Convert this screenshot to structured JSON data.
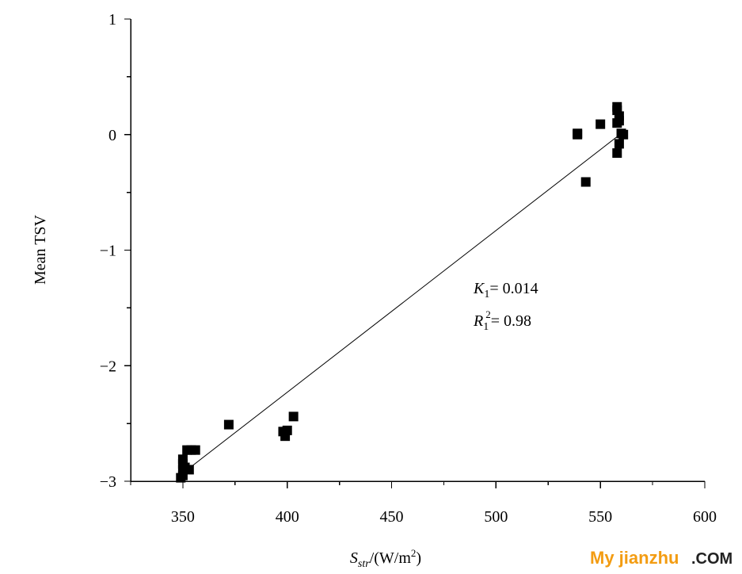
{
  "chart_data": {
    "type": "scatter",
    "ylabel": "Mean TSV",
    "xlabel": {
      "symbol": "S",
      "subscript": "str",
      "unit": "/(W/m",
      "superscript": "2",
      "close": ")"
    },
    "xlim": [
      325,
      600
    ],
    "ylim": [
      -3,
      1
    ],
    "x_ticks": [
      350,
      400,
      450,
      500,
      550,
      600
    ],
    "x_tick_labels": [
      "350",
      "400",
      "450",
      "500",
      "550",
      "600"
    ],
    "x_minor_ticks": [
      325,
      375,
      425,
      475,
      525,
      575
    ],
    "y_ticks": [
      1,
      0,
      -1,
      -2,
      -3
    ],
    "y_tick_labels": [
      "1",
      "0",
      "−1",
      "−2",
      "−3"
    ],
    "y_minor_ticks": [
      0.5,
      -0.5,
      -1.5,
      -2.5
    ],
    "grid": false,
    "marker_color": "#000000",
    "series": [
      {
        "x": [
          349,
          350,
          350,
          350,
          350,
          351,
          352,
          353,
          354,
          356,
          372,
          398,
          399,
          400,
          403,
          539,
          539,
          543,
          550,
          558,
          558,
          559,
          558,
          560,
          561,
          559,
          558,
          559
        ],
        "y": [
          -2.97,
          -2.95,
          -2.9,
          -2.85,
          -2.81,
          -2.88,
          -2.73,
          -2.9,
          -2.73,
          -2.73,
          -2.51,
          -2.57,
          -2.61,
          -2.56,
          -2.44,
          0.0,
          0.01,
          -0.41,
          0.09,
          0.24,
          0.21,
          0.16,
          0.1,
          0.01,
          0.0,
          -0.08,
          -0.16,
          0.12
        ]
      }
    ],
    "fit_line": {
      "x": [
        350,
        560
      ],
      "y": [
        -2.93,
        0.01
      ]
    },
    "annotations": {
      "slope": {
        "symbol": "K",
        "subscript": "1",
        "text": "= 0.014"
      },
      "r_squared": {
        "symbol": "R",
        "subscript": "1",
        "superscript": "2",
        "text": "= 0.98"
      }
    }
  },
  "watermark": {
    "brand": "My jianzhu",
    "suffix": ".COM",
    "brand_color": "#f39c12",
    "suffix_color": "#222222"
  }
}
